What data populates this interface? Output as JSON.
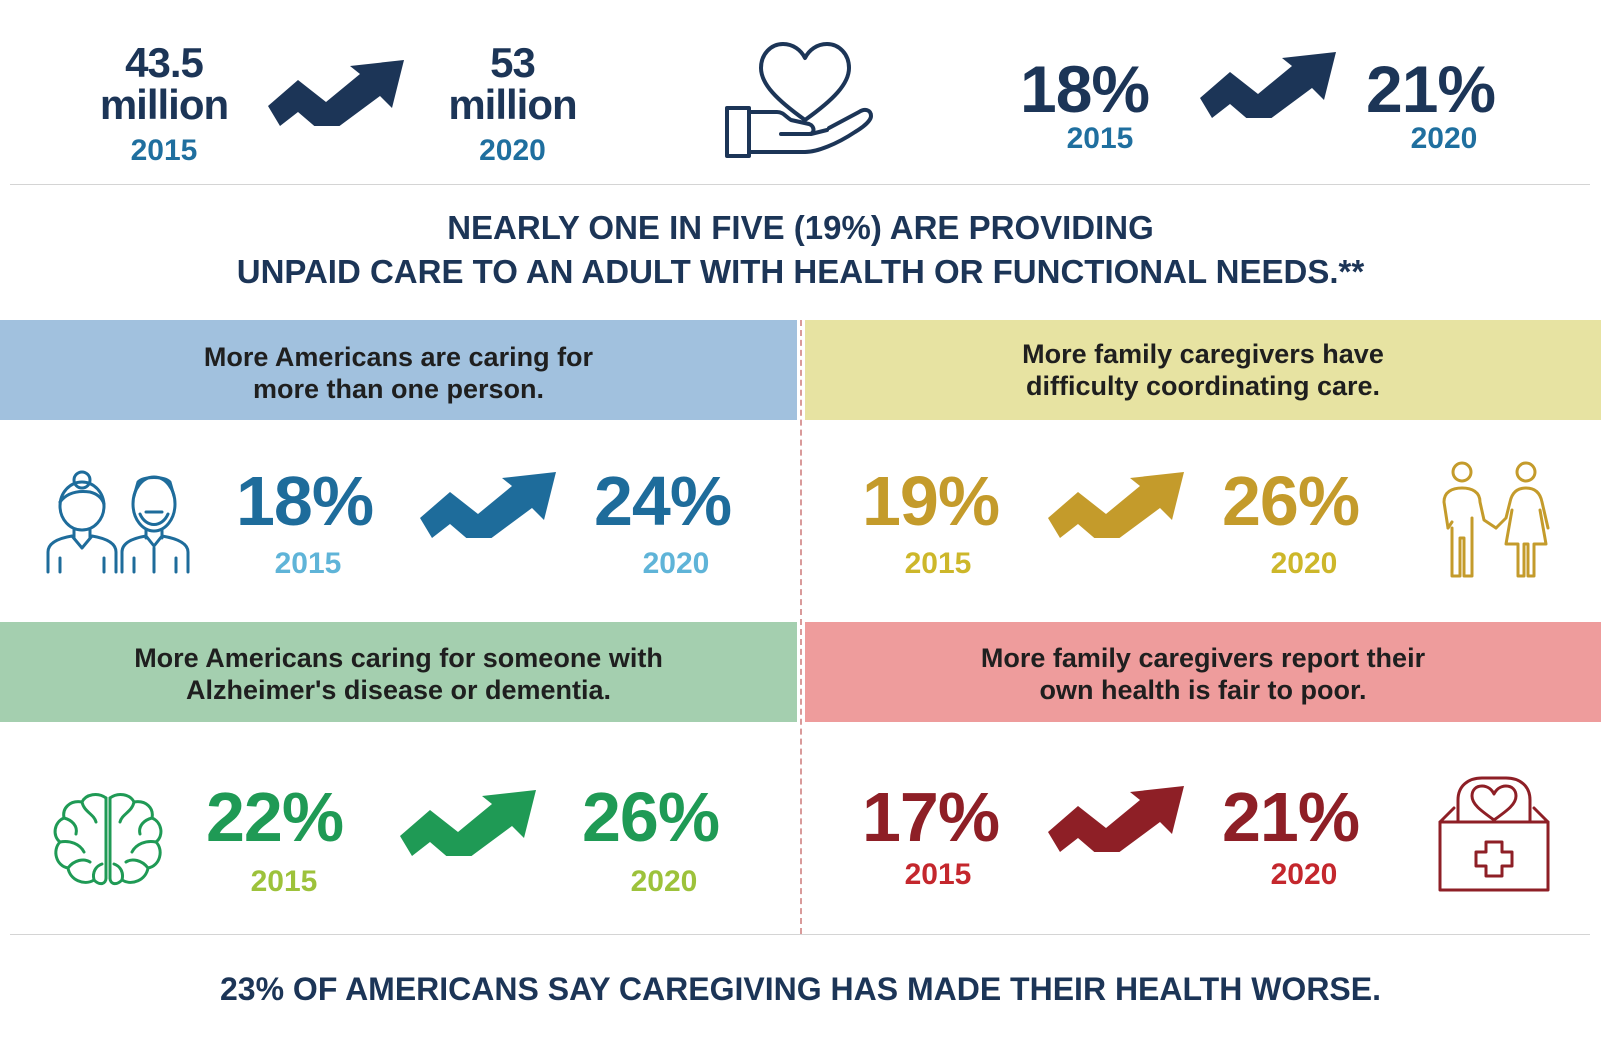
{
  "colors": {
    "navy": "#1c3557",
    "navy_year": "#1f6f9f",
    "blue": "#1e6c9b",
    "blue_year": "#5fb4d8",
    "blue_header": "#a1c1de",
    "gold": "#c49b2b",
    "gold_year": "#cdb72a",
    "gold_header": "#e7e3a2",
    "green": "#1f9a55",
    "green_year": "#9dc23b",
    "green_header": "#a4cfaf",
    "red": "#8e1f26",
    "red_year": "#c4272d",
    "red_header": "#ee9c9c"
  },
  "top_stats": {
    "caregivers": {
      "from_value_line1": "43.5",
      "from_value_line2": "million",
      "from_year": "2015",
      "to_value_line1": "53",
      "to_value_line2": "million",
      "to_year": "2020",
      "arrow_icon": "trend-up-arrow-icon"
    },
    "center_icon": "heart-in-hand-icon",
    "share": {
      "from_value": "18%",
      "from_year": "2015",
      "to_value": "21%",
      "to_year": "2020",
      "arrow_icon": "trend-up-arrow-icon"
    }
  },
  "headline": {
    "line1": "NEARLY ONE IN FIVE (19%) ARE PROVIDING",
    "line2": "UNPAID CARE TO AN ADULT WITH HEALTH OR FUNCTIONAL NEEDS.**"
  },
  "panels": {
    "multiple": {
      "header_line1": "More Americans are caring for",
      "header_line2": "more than one person.",
      "from_value": "18%",
      "from_year": "2015",
      "to_value": "24%",
      "to_year": "2020",
      "icon": "elderly-couple-icon"
    },
    "coordination": {
      "header_line1": "More family caregivers have",
      "header_line2": "difficulty coordinating care.",
      "from_value": "19%",
      "from_year": "2015",
      "to_value": "26%",
      "to_year": "2020",
      "icon": "couple-holding-hands-icon"
    },
    "alzheimers": {
      "header_line1": "More Americans caring for someone with",
      "header_line2": "Alzheimer's disease or dementia.",
      "from_value": "22%",
      "from_year": "2015",
      "to_value": "26%",
      "to_year": "2020",
      "icon": "brain-icon"
    },
    "health": {
      "header_line1": "More family caregivers report their",
      "header_line2": "own health is fair to poor.",
      "from_value": "17%",
      "from_year": "2015",
      "to_value": "21%",
      "to_year": "2020",
      "icon": "medical-kit-heart-icon"
    }
  },
  "footer": {
    "text": "23% OF AMERICANS SAY CAREGIVING HAS MADE THEIR HEALTH WORSE."
  }
}
